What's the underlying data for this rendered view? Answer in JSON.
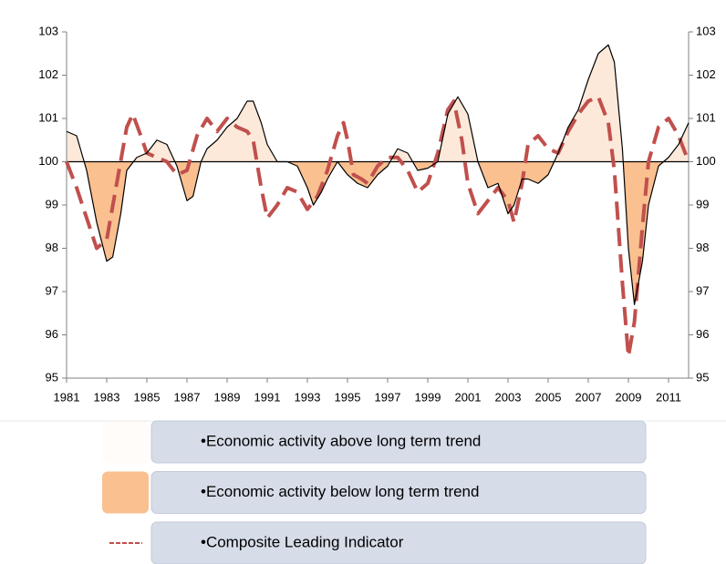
{
  "chart_data": {
    "type": "line",
    "xlim": [
      1981,
      2012
    ],
    "xticks": [
      1981,
      1983,
      1985,
      1987,
      1989,
      1991,
      1993,
      1995,
      1997,
      1999,
      2001,
      2003,
      2005,
      2007,
      2009,
      2011
    ],
    "ylim": [
      95,
      103
    ],
    "yticks": [
      95,
      96,
      97,
      98,
      99,
      100,
      101,
      102,
      103
    ],
    "y2lim": [
      95,
      103
    ],
    "y2ticks": [
      95,
      96,
      97,
      98,
      99,
      100,
      101,
      102,
      103
    ],
    "reference_line": 100,
    "series": [
      {
        "color": "#000000",
        "fill_above": "#fde9d9",
        "fill_below": "#fac090",
        "x": [
          1981.0,
          1981.5,
          1982.0,
          1982.5,
          1983.0,
          1983.3,
          1983.7,
          1984.0,
          1984.5,
          1985.0,
          1985.5,
          1986.0,
          1986.5,
          1987.0,
          1987.3,
          1987.7,
          1988.0,
          1988.5,
          1989.0,
          1989.5,
          1990.0,
          1990.3,
          1990.7,
          1991.0,
          1991.5,
          1992.0,
          1992.5,
          1993.0,
          1993.3,
          1993.7,
          1994.0,
          1994.5,
          1995.0,
          1995.5,
          1996.0,
          1996.5,
          1997.0,
          1997.5,
          1998.0,
          1998.5,
          1999.0,
          1999.5,
          2000.0,
          2000.5,
          2001.0,
          2001.5,
          2002.0,
          2002.5,
          2003.0,
          2003.3,
          2003.7,
          2004.0,
          2004.5,
          2005.0,
          2005.5,
          2006.0,
          2006.5,
          2007.0,
          2007.5,
          2008.0,
          2008.3,
          2008.7,
          2009.0,
          2009.3,
          2009.7,
          2010.0,
          2010.5,
          2011.0,
          2011.5,
          2012.0
        ],
        "values": [
          100.7,
          100.6,
          99.8,
          98.6,
          97.7,
          97.8,
          98.8,
          99.8,
          100.1,
          100.2,
          100.5,
          100.4,
          99.9,
          99.1,
          99.2,
          100.0,
          100.3,
          100.5,
          100.8,
          101.0,
          101.4,
          101.4,
          100.9,
          100.4,
          100.0,
          100.0,
          99.9,
          99.4,
          99.0,
          99.3,
          99.6,
          100.0,
          99.7,
          99.5,
          99.4,
          99.7,
          99.9,
          100.3,
          100.2,
          99.8,
          99.85,
          100.0,
          101.1,
          101.5,
          101.1,
          100.0,
          99.4,
          99.5,
          98.8,
          99.0,
          99.6,
          99.6,
          99.5,
          99.7,
          100.2,
          100.8,
          101.2,
          101.9,
          102.5,
          102.7,
          102.3,
          100.3,
          98.0,
          96.7,
          97.7,
          99.0,
          99.9,
          100.1,
          100.4,
          100.9
        ]
      },
      {
        "color": "#c0504d",
        "dashed": true,
        "x": [
          1981.0,
          1981.5,
          1982.0,
          1982.5,
          1983.0,
          1983.5,
          1984.0,
          1984.3,
          1984.7,
          1985.0,
          1985.5,
          1986.0,
          1986.5,
          1987.0,
          1987.5,
          1988.0,
          1988.5,
          1989.0,
          1989.5,
          1990.0,
          1990.3,
          1990.7,
          1991.0,
          1991.5,
          1992.0,
          1992.5,
          1993.0,
          1993.5,
          1994.0,
          1994.5,
          1994.8,
          1995.0,
          1995.3,
          1995.7,
          1996.0,
          1996.5,
          1997.0,
          1997.5,
          1998.0,
          1998.5,
          1999.0,
          1999.5,
          2000.0,
          2000.3,
          2000.7,
          2001.0,
          2001.5,
          2002.0,
          2002.5,
          2003.0,
          2003.3,
          2003.7,
          2004.0,
          2004.5,
          2005.0,
          2005.5,
          2006.0,
          2006.5,
          2007.0,
          2007.5,
          2008.0,
          2008.3,
          2008.7,
          2009.0,
          2009.3,
          2009.7,
          2010.0,
          2010.5,
          2011.0,
          2011.5,
          2012.0
        ],
        "values": [
          100.0,
          99.4,
          98.7,
          98.0,
          98.2,
          99.5,
          100.8,
          101.1,
          100.6,
          100.2,
          100.1,
          100.0,
          99.7,
          99.8,
          100.6,
          101.0,
          100.7,
          101.0,
          100.8,
          100.7,
          100.5,
          99.4,
          98.7,
          99.0,
          99.4,
          99.3,
          98.9,
          99.2,
          99.8,
          100.6,
          100.9,
          100.5,
          99.7,
          99.6,
          99.5,
          99.9,
          100.1,
          100.1,
          99.8,
          99.3,
          99.5,
          100.2,
          101.2,
          101.4,
          100.5,
          99.5,
          98.8,
          99.1,
          99.4,
          99.1,
          98.6,
          99.5,
          100.4,
          100.6,
          100.3,
          100.2,
          100.7,
          101.1,
          101.4,
          101.5,
          100.9,
          99.8,
          97.2,
          95.5,
          96.3,
          98.5,
          100.0,
          100.8,
          101.0,
          100.6,
          100.0
        ]
      }
    ],
    "legend": [
      {
        "label": "•Economic activity above long term trend",
        "swatch": "fill_above"
      },
      {
        "label": "•Economic activity below long term trend",
        "swatch": "fill_below"
      },
      {
        "label": "•Composite Leading Indicator",
        "swatch": "line"
      }
    ]
  }
}
